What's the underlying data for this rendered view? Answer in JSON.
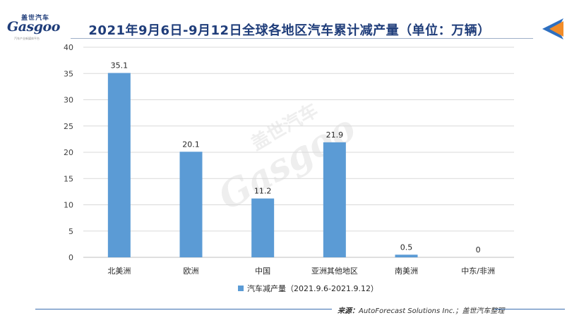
{
  "logo": {
    "brand_cn": "盖世汽车",
    "brand_en": "Gasgoo",
    "tagline": "汽车产业新媒体平台"
  },
  "colors": {
    "bar": "#5b9bd5",
    "title": "#1f3d7a",
    "grid": "#d9d9d9",
    "corner_orange": "#f28c28",
    "corner_blue": "#2e6fc0"
  },
  "icons": [
    "gasgoo-logo-icon",
    "arrow-corner-icon",
    "legend-swatch-icon"
  ],
  "source": {
    "label": "来源：",
    "text": "AutoForecast Solutions Inc.；盖世汽车整理"
  },
  "chart_data": {
    "type": "bar",
    "title": "2021年9月6日-9月12日全球各地区汽车累计减产量（单位：万辆）",
    "categories": [
      "北美洲",
      "欧洲",
      "中国",
      "亚洲其他地区",
      "南美洲",
      "中东/非洲"
    ],
    "series": [
      {
        "name": "汽车减产量（2021.9.6-2021.9.12）",
        "values": [
          35.1,
          20.1,
          11.2,
          21.9,
          0.5,
          0
        ]
      }
    ],
    "data_labels": [
      "35.1",
      "20.1",
      "11.2",
      "21.9",
      "0.5",
      "0"
    ],
    "ylim": [
      0,
      40
    ],
    "yticks": [
      0,
      5,
      10,
      15,
      20,
      25,
      30,
      35,
      40
    ],
    "grid": true,
    "legend": "bottom",
    "xlabel": "",
    "ylabel": ""
  }
}
